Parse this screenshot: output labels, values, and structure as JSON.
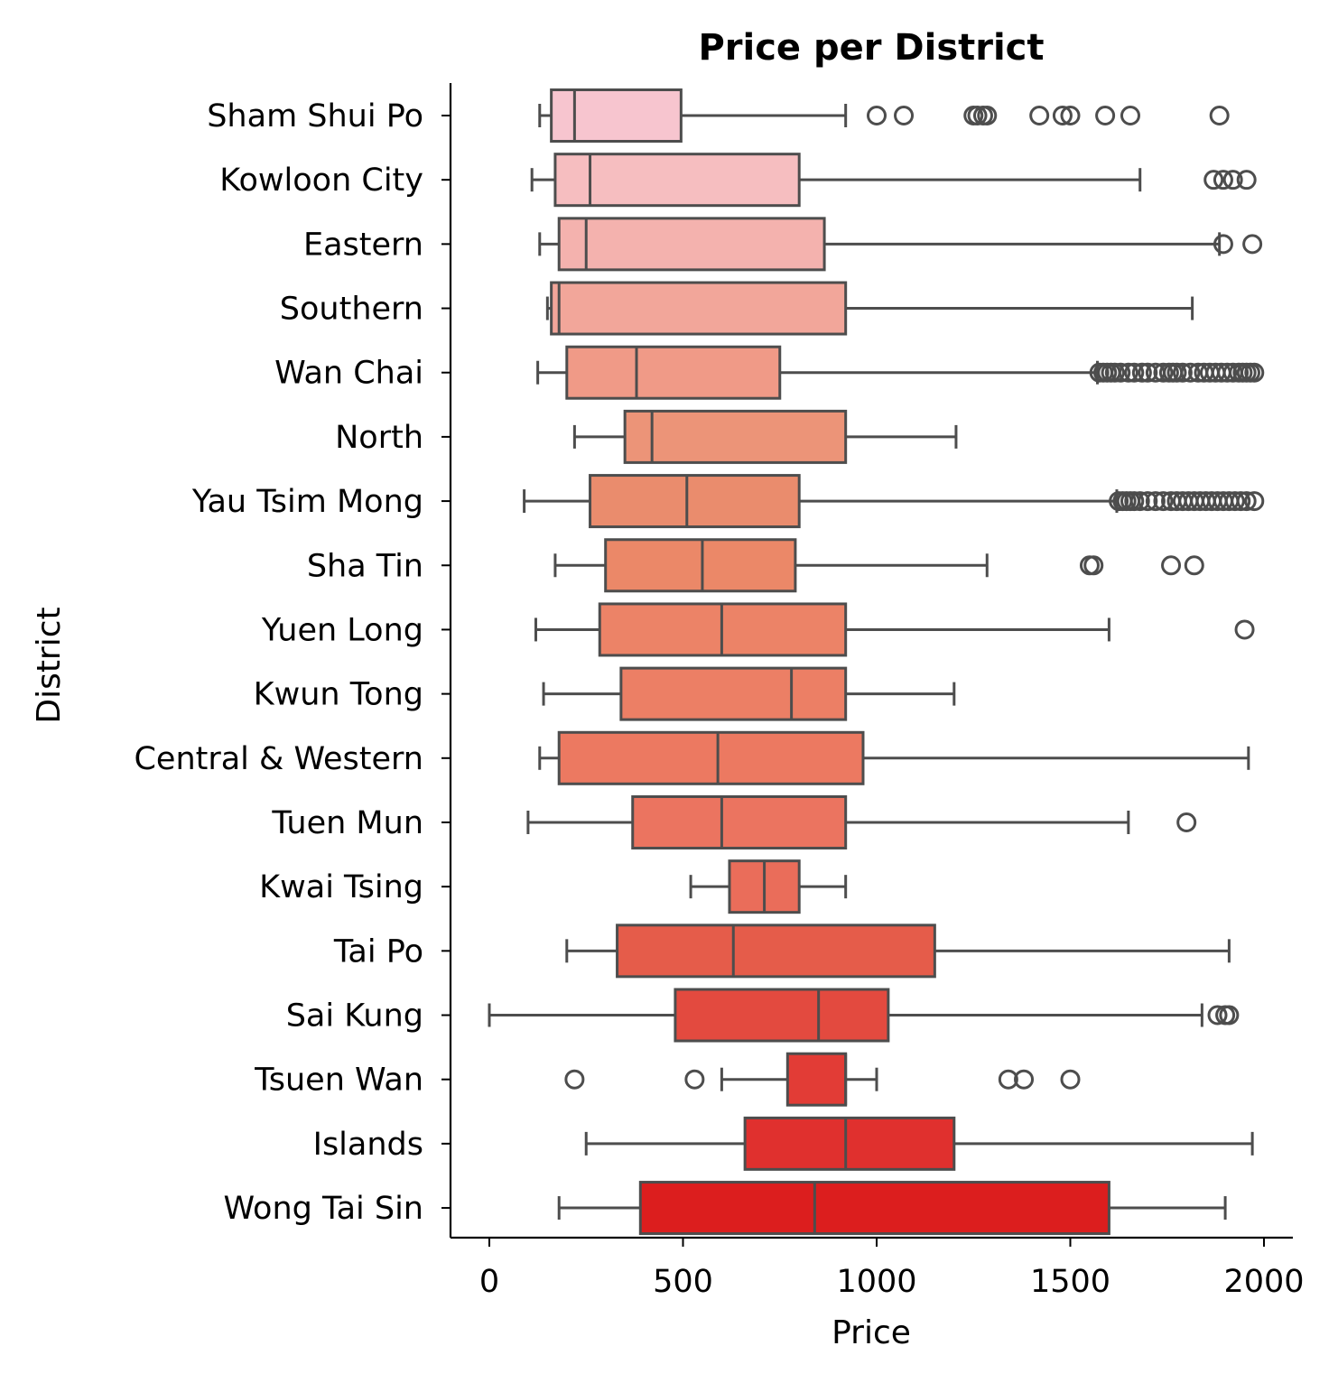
{
  "chart_data": {
    "type": "box",
    "orientation": "horizontal",
    "title": "Price per District",
    "xlabel": "Price",
    "ylabel": "District",
    "xlim": [
      -100,
      2070
    ],
    "xticks": [
      0,
      500,
      1000,
      1500,
      2000
    ],
    "grid": false,
    "colors": {
      "box_edge": "#4d4d4d",
      "first_fill": "#f7c5cf",
      "last_fill": "#dc1e1e"
    },
    "categories": [
      "Sham Shui Po",
      "Kowloon City",
      "Eastern",
      "Southern",
      "Wan Chai",
      "North",
      "Yau Tsim Mong",
      "Sha Tin",
      "Yuen Long",
      "Kwun Tong",
      "Central & Western",
      "Tuen Mun",
      "Kwai Tsing",
      "Tai Po",
      "Sai Kung",
      "Tsuen Wan",
      "Islands",
      "Wong Tai Sin"
    ],
    "boxes": [
      {
        "whisker_low": 130,
        "q1": 160,
        "median": 220,
        "q3": 495,
        "whisker_high": 920,
        "outliers": [
          1000,
          1070,
          1250,
          1260,
          1275,
          1285,
          1420,
          1480,
          1500,
          1590,
          1655,
          1885
        ],
        "fill": "#f7c5cf"
      },
      {
        "whisker_low": 110,
        "q1": 170,
        "median": 260,
        "q3": 800,
        "whisker_high": 1680,
        "outliers": [
          1870,
          1895,
          1920,
          1955
        ],
        "fill": "#f6bec0"
      },
      {
        "whisker_low": 130,
        "q1": 180,
        "median": 250,
        "q3": 865,
        "whisker_high": 1885,
        "outliers": [
          1895,
          1970
        ],
        "fill": "#f4b2ae"
      },
      {
        "whisker_low": 150,
        "q1": 160,
        "median": 180,
        "q3": 920,
        "whisker_high": 1815,
        "outliers": [],
        "fill": "#f2a69a"
      },
      {
        "whisker_low": 125,
        "q1": 200,
        "median": 380,
        "q3": 750,
        "whisker_high": 1570,
        "outliers": [
          1575,
          1585,
          1595,
          1605,
          1615,
          1630,
          1650,
          1665,
          1685,
          1700,
          1720,
          1740,
          1755,
          1765,
          1775,
          1790,
          1810,
          1830,
          1845,
          1860,
          1875,
          1890,
          1905,
          1920,
          1935,
          1945,
          1955,
          1965,
          1975
        ],
        "fill": "#f09a87"
      },
      {
        "whisker_low": 220,
        "q1": 350,
        "median": 420,
        "q3": 920,
        "whisker_high": 1205,
        "outliers": [],
        "fill": "#ec9478"
      },
      {
        "whisker_low": 90,
        "q1": 260,
        "median": 510,
        "q3": 800,
        "whisker_high": 1620,
        "outliers": [
          1625,
          1635,
          1645,
          1655,
          1665,
          1680,
          1700,
          1720,
          1740,
          1760,
          1775,
          1790,
          1805,
          1820,
          1835,
          1850,
          1865,
          1880,
          1895,
          1910,
          1925,
          1940,
          1955,
          1975
        ],
        "fill": "#ea8c6d"
      },
      {
        "whisker_low": 170,
        "q1": 300,
        "median": 550,
        "q3": 790,
        "whisker_high": 1285,
        "outliers": [
          1550,
          1560,
          1760,
          1820
        ],
        "fill": "#eb8868"
      },
      {
        "whisker_low": 120,
        "q1": 285,
        "median": 600,
        "q3": 920,
        "whisker_high": 1600,
        "outliers": [
          1950
        ],
        "fill": "#ec8367"
      },
      {
        "whisker_low": 140,
        "q1": 340,
        "median": 780,
        "q3": 920,
        "whisker_high": 1200,
        "outliers": [],
        "fill": "#ec7f65"
      },
      {
        "whisker_low": 130,
        "q1": 180,
        "median": 590,
        "q3": 965,
        "whisker_high": 1960,
        "outliers": [],
        "fill": "#ec7961"
      },
      {
        "whisker_low": 100,
        "q1": 370,
        "median": 600,
        "q3": 920,
        "whisker_high": 1650,
        "outliers": [
          1800
        ],
        "fill": "#eb7460"
      },
      {
        "whisker_low": 520,
        "q1": 620,
        "median": 710,
        "q3": 800,
        "whisker_high": 920,
        "outliers": [],
        "fill": "#ea6d5a"
      },
      {
        "whisker_low": 200,
        "q1": 330,
        "median": 630,
        "q3": 1150,
        "whisker_high": 1910,
        "outliers": [],
        "fill": "#e55c4a"
      },
      {
        "whisker_low": 0,
        "q1": 480,
        "median": 850,
        "q3": 1030,
        "whisker_high": 1840,
        "outliers": [
          1880,
          1900,
          1910
        ],
        "fill": "#e34a3f"
      },
      {
        "whisker_low": 600,
        "q1": 770,
        "median": 920,
        "q3": 920,
        "whisker_high": 1000,
        "outliers": [
          220,
          530,
          1340,
          1380,
          1500
        ],
        "fill": "#e23c36"
      },
      {
        "whisker_low": 250,
        "q1": 660,
        "median": 920,
        "q3": 1200,
        "whisker_high": 1970,
        "outliers": [],
        "fill": "#e0302e"
      },
      {
        "whisker_low": 180,
        "q1": 390,
        "median": 840,
        "q3": 1600,
        "whisker_high": 1900,
        "outliers": [],
        "fill": "#dc1e1e"
      }
    ]
  }
}
